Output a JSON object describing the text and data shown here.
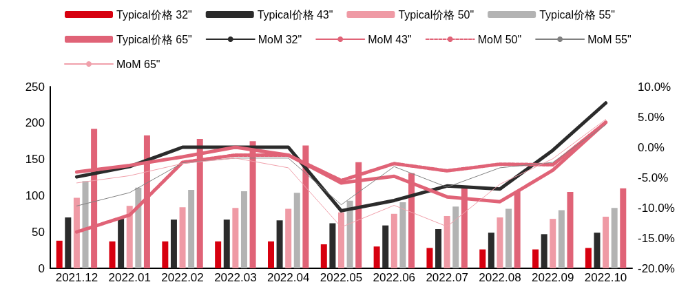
{
  "chart_data": {
    "type": "bar",
    "categories": [
      "2021.12",
      "2022.01",
      "2022.02",
      "2022.03",
      "2022.04",
      "2022.05",
      "2022.06",
      "2022.07",
      "2022.08",
      "2022.09",
      "2022.10"
    ],
    "series": [
      {
        "name": "Typical价格 32\"",
        "color": "#d7000f",
        "values": [
          38,
          37,
          37,
          37,
          37,
          33,
          30,
          28,
          26,
          26,
          28
        ]
      },
      {
        "name": "Typical价格 43\"",
        "color": "#2b2b2b",
        "values": [
          70,
          68,
          67,
          67,
          66,
          62,
          59,
          54,
          49,
          47,
          49
        ]
      },
      {
        "name": "Typical价格 50\"",
        "color": "#ef9aa5",
        "values": [
          97,
          86,
          84,
          83,
          82,
          77,
          75,
          72,
          70,
          68,
          71
        ]
      },
      {
        "name": "Typical价格 55\"",
        "color": "#b3b3b3",
        "values": [
          120,
          111,
          108,
          106,
          104,
          93,
          91,
          85,
          82,
          80,
          83
        ]
      },
      {
        "name": "Typical价格 65\"",
        "color": "#e06377",
        "values": [
          192,
          183,
          178,
          175,
          169,
          146,
          131,
          110,
          106,
          105,
          110
        ]
      },
      {
        "name": "MoM 32\"",
        "type": "line",
        "axis": "y2",
        "color": "#2b2b2b",
        "line_style": "solid",
        "values": [
          -4.9,
          -3.2,
          0,
          0,
          0,
          -10.5,
          -8.8,
          -6.4,
          -6.9,
          -0.5,
          7.3
        ]
      },
      {
        "name": "MoM 43\"",
        "type": "line",
        "axis": "y2",
        "color": "#e06377",
        "line_style": "solid",
        "values": [
          -4.1,
          -3.0,
          -1.6,
          0,
          -1.3,
          -5.9,
          -4.8,
          -8.2,
          -9.0,
          -3.8,
          4.1
        ]
      },
      {
        "name": "MoM 50\"",
        "type": "line",
        "axis": "y2",
        "color": "#e06377",
        "line_style": "dashed",
        "values": [
          -14.0,
          -11.2,
          -2.5,
          -1.3,
          -1.3,
          -5.5,
          -2.7,
          -3.9,
          -2.8,
          -2.9,
          4.1
        ]
      },
      {
        "name": "MoM 55\"",
        "type": "line",
        "axis": "y2",
        "color": "#808080",
        "line_style": "solid",
        "values": [
          -9.7,
          -7.5,
          -2.6,
          -1.8,
          -1.8,
          -9.5,
          -3.2,
          -6.6,
          -3.4,
          -2.5,
          3.7
        ]
      },
      {
        "name": "MoM 65\"",
        "type": "line",
        "axis": "y2",
        "color": "#f0a0ab",
        "line_style": "solid",
        "values": [
          -5.9,
          -4.7,
          -2.7,
          -1.8,
          -3.4,
          -13.2,
          -9.6,
          -13.1,
          -6.1,
          -1.9,
          4.6
        ]
      }
    ],
    "ylim": [
      0,
      250
    ],
    "yticks": [
      0,
      50,
      100,
      150,
      200,
      250
    ],
    "y2lim": [
      -20,
      10
    ],
    "y2ticks": [
      {
        "value": -20,
        "label": "-20.0%"
      },
      {
        "value": -15,
        "label": "-15.0%"
      },
      {
        "value": -10,
        "label": "-10.0%"
      },
      {
        "value": -5,
        "label": "-5.0%"
      },
      {
        "value": 0,
        "label": "0.0%"
      },
      {
        "value": 5,
        "label": "5.0%"
      },
      {
        "value": 10,
        "label": "10.0%"
      }
    ],
    "grid": false,
    "legend": "top",
    "marker": "none"
  }
}
